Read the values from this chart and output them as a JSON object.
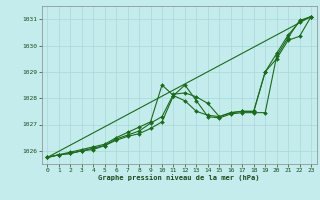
{
  "xlabel": "Graphe pression niveau de la mer (hPa)",
  "xlim": [
    -0.5,
    23.5
  ],
  "ylim": [
    1025.5,
    1031.5
  ],
  "yticks": [
    1026,
    1027,
    1028,
    1029,
    1030,
    1031
  ],
  "xticks": [
    0,
    1,
    2,
    3,
    4,
    5,
    6,
    7,
    8,
    9,
    10,
    11,
    12,
    13,
    14,
    15,
    16,
    17,
    18,
    19,
    20,
    21,
    22,
    23
  ],
  "bg_color": "#c5eced",
  "grid_color": "#a8d8d8",
  "line_color": "#1a6b1a",
  "series1_x": [
    0,
    1,
    2,
    3,
    4,
    5,
    6,
    7,
    8,
    9,
    10,
    11,
    12,
    13,
    14,
    15,
    16,
    17,
    18,
    19,
    20,
    21,
    22,
    23
  ],
  "series1_y": [
    1025.75,
    1025.85,
    1025.9,
    1026.0,
    1026.05,
    1026.2,
    1026.4,
    1026.55,
    1026.65,
    1026.85,
    1027.1,
    1028.1,
    1028.5,
    1027.9,
    1027.3,
    1027.25,
    1027.4,
    1027.45,
    1027.45,
    1027.45,
    1029.6,
    1030.3,
    1030.95,
    1031.1
  ],
  "series2_x": [
    0,
    1,
    2,
    3,
    4,
    5,
    6,
    7,
    8,
    9,
    10,
    11,
    12,
    13,
    14,
    15,
    16,
    17,
    18,
    19,
    20,
    21,
    22,
    23
  ],
  "series2_y": [
    1025.75,
    1025.85,
    1025.9,
    1026.0,
    1026.1,
    1026.2,
    1026.45,
    1026.6,
    1026.75,
    1027.05,
    1027.3,
    1028.15,
    1028.2,
    1028.05,
    1027.8,
    1027.3,
    1027.45,
    1027.5,
    1027.5,
    1029.0,
    1029.5,
    1030.2,
    1030.35,
    1031.1
  ],
  "series3_x": [
    0,
    1,
    2,
    3,
    4,
    5,
    6,
    7,
    8,
    9,
    10,
    11,
    12,
    13,
    14,
    15,
    16,
    17,
    18,
    19,
    20,
    21,
    22,
    23
  ],
  "series3_y": [
    1025.75,
    1025.85,
    1025.95,
    1026.05,
    1026.15,
    1026.25,
    1026.5,
    1026.7,
    1026.9,
    1027.1,
    1028.5,
    1028.1,
    1027.9,
    1027.5,
    1027.35,
    1027.3,
    1027.45,
    1027.5,
    1027.5,
    1029.0,
    1029.7,
    1030.4,
    1030.9,
    1031.1
  ],
  "series4_x": [
    0,
    23
  ],
  "series4_y": [
    1025.75,
    1031.1
  ]
}
